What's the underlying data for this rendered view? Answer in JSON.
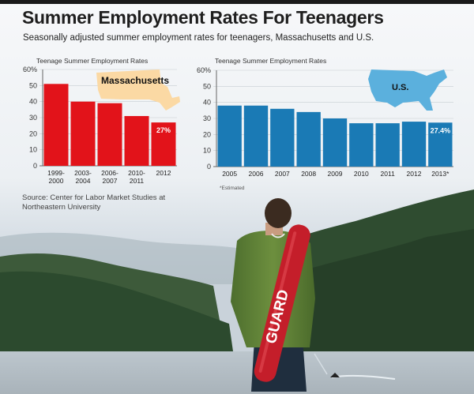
{
  "header": {
    "title": "Summer Employment Rates For Teenagers",
    "subtitle": "Seasonally adjusted summer employment rates for teenagers, Massachusetts and U.S."
  },
  "source": "Source: Center for Labor Market Studies at Northeastern University",
  "footnote": "*Estimated",
  "photo": {
    "buoy_text": "GUARD"
  },
  "colors": {
    "ma_bar": "#e2131a",
    "us_bar": "#1a7ab5",
    "map_ma": "#fbd9a4",
    "map_us": "#5bb0dd"
  },
  "chart_data": [
    {
      "type": "bar",
      "title": "Teenage Summer Employment Rates",
      "map_label": "Massachusetts",
      "categories": [
        "1999-\n2000",
        "2003-\n2004",
        "2006-\n2007",
        "2010-\n2011",
        "2012"
      ],
      "values": [
        51,
        40,
        39,
        31,
        27
      ],
      "data_labels": [
        "",
        "",
        "",
        "",
        "27%"
      ],
      "ylim": [
        0,
        60
      ],
      "yticks": [
        "0",
        "10",
        "20",
        "30",
        "40",
        "50",
        "60%"
      ],
      "grid": true
    },
    {
      "type": "bar",
      "title": "Teenage Summer Employment Rates",
      "map_label": "U.S.",
      "categories": [
        "2005",
        "2006",
        "2007",
        "2008",
        "2009",
        "2010",
        "2011",
        "2012",
        "2013*"
      ],
      "values": [
        38,
        38,
        36,
        34,
        30,
        27,
        27,
        28,
        27.4
      ],
      "data_labels": [
        "",
        "",
        "",
        "",
        "",
        "",
        "",
        "",
        "27.4%"
      ],
      "ylim": [
        0,
        60
      ],
      "yticks": [
        "0",
        "10",
        "20",
        "30",
        "40",
        "50",
        "60%"
      ],
      "grid": true
    }
  ]
}
